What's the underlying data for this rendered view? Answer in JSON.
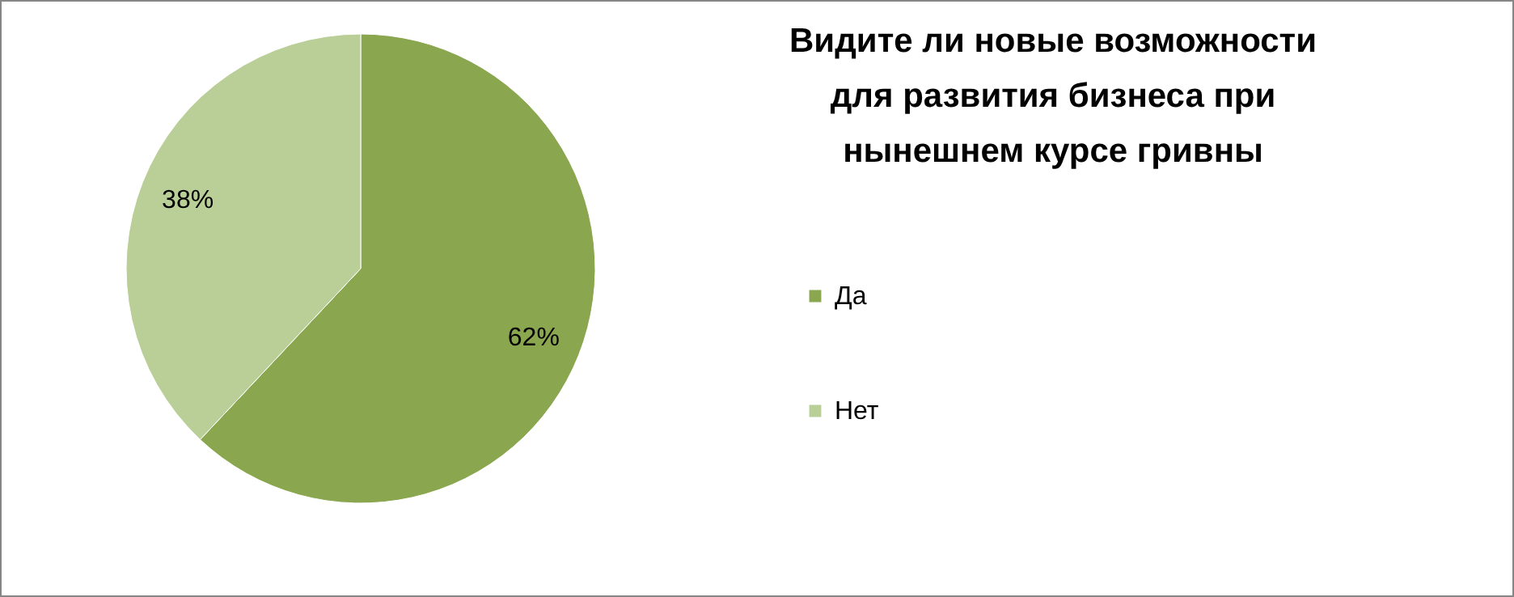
{
  "chart_data": {
    "type": "pie",
    "title": "Видите ли новые возможности\nдля развития  бизнеса при\nнынешнем курсе гривны",
    "categories": [
      "Да",
      "Нет"
    ],
    "values": [
      62,
      38
    ],
    "colors": [
      "#8aa64f",
      "#bacf98"
    ],
    "value_labels": [
      "62%",
      "38%"
    ],
    "legend": "right"
  }
}
